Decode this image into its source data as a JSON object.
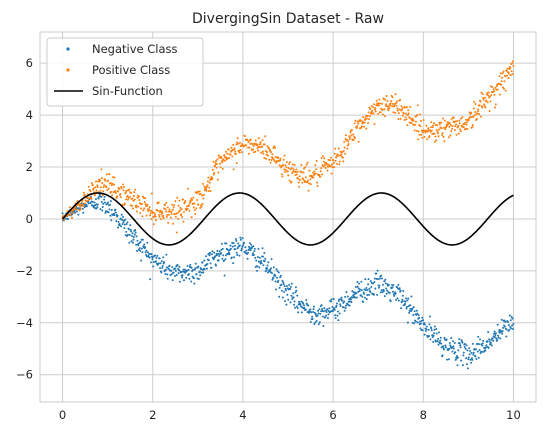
{
  "chart_data": {
    "type": "scatter",
    "title": "DivergingSin Dataset - Raw",
    "xlabel": "",
    "ylabel": "",
    "xlim": [
      -0.5,
      10.5
    ],
    "ylim": [
      -7.05,
      7.2
    ],
    "xticks": [
      0,
      2,
      4,
      6,
      8,
      10
    ],
    "yticks": [
      -6,
      -4,
      -2,
      0,
      2,
      4,
      6
    ],
    "grid": true,
    "legend_position": "top-left",
    "series": [
      {
        "name": "Negative Class",
        "kind": "scatter",
        "color": "#1f77b4",
        "points_per_series": 1000,
        "x_range": [
          0,
          10
        ],
        "curve_x": [
          0,
          0.5,
          0.75,
          1,
          1.5,
          2,
          2.5,
          3,
          3.5,
          4,
          4.5,
          5,
          5.5,
          6,
          6.5,
          7,
          7.5,
          8,
          8.5,
          9,
          9.5,
          10
        ],
        "curve_y": [
          0,
          0.55,
          0.7,
          0.55,
          -0.55,
          -1.55,
          -2.1,
          -2.0,
          -1.3,
          -1.05,
          -1.75,
          -2.9,
          -3.6,
          -3.55,
          -2.85,
          -2.5,
          -3.0,
          -4.15,
          -4.9,
          -5.25,
          -4.7,
          -3.9
        ],
        "noise_sd": 0.22
      },
      {
        "name": "Positive Class",
        "kind": "scatter",
        "color": "#ff7f0e",
        "points_per_series": 1000,
        "x_range": [
          0,
          10
        ],
        "curve_x": [
          0,
          0.5,
          0.75,
          1,
          1.5,
          2,
          2.5,
          3,
          3.5,
          4,
          4.5,
          5,
          5.5,
          6,
          6.5,
          7,
          7.5,
          8,
          8.5,
          9,
          9.5,
          10
        ],
        "curve_y": [
          0,
          0.8,
          1.3,
          1.3,
          0.8,
          0.3,
          0.3,
          0.7,
          2.1,
          2.9,
          2.7,
          1.9,
          1.6,
          2.1,
          3.4,
          4.4,
          4.3,
          3.4,
          3.5,
          3.75,
          4.8,
          5.8
        ],
        "noise_sd": 0.22
      },
      {
        "name": "Sin-Function",
        "kind": "line",
        "color": "#000000",
        "function": "sin(2x)",
        "x_range": [
          0,
          10
        ]
      }
    ]
  }
}
